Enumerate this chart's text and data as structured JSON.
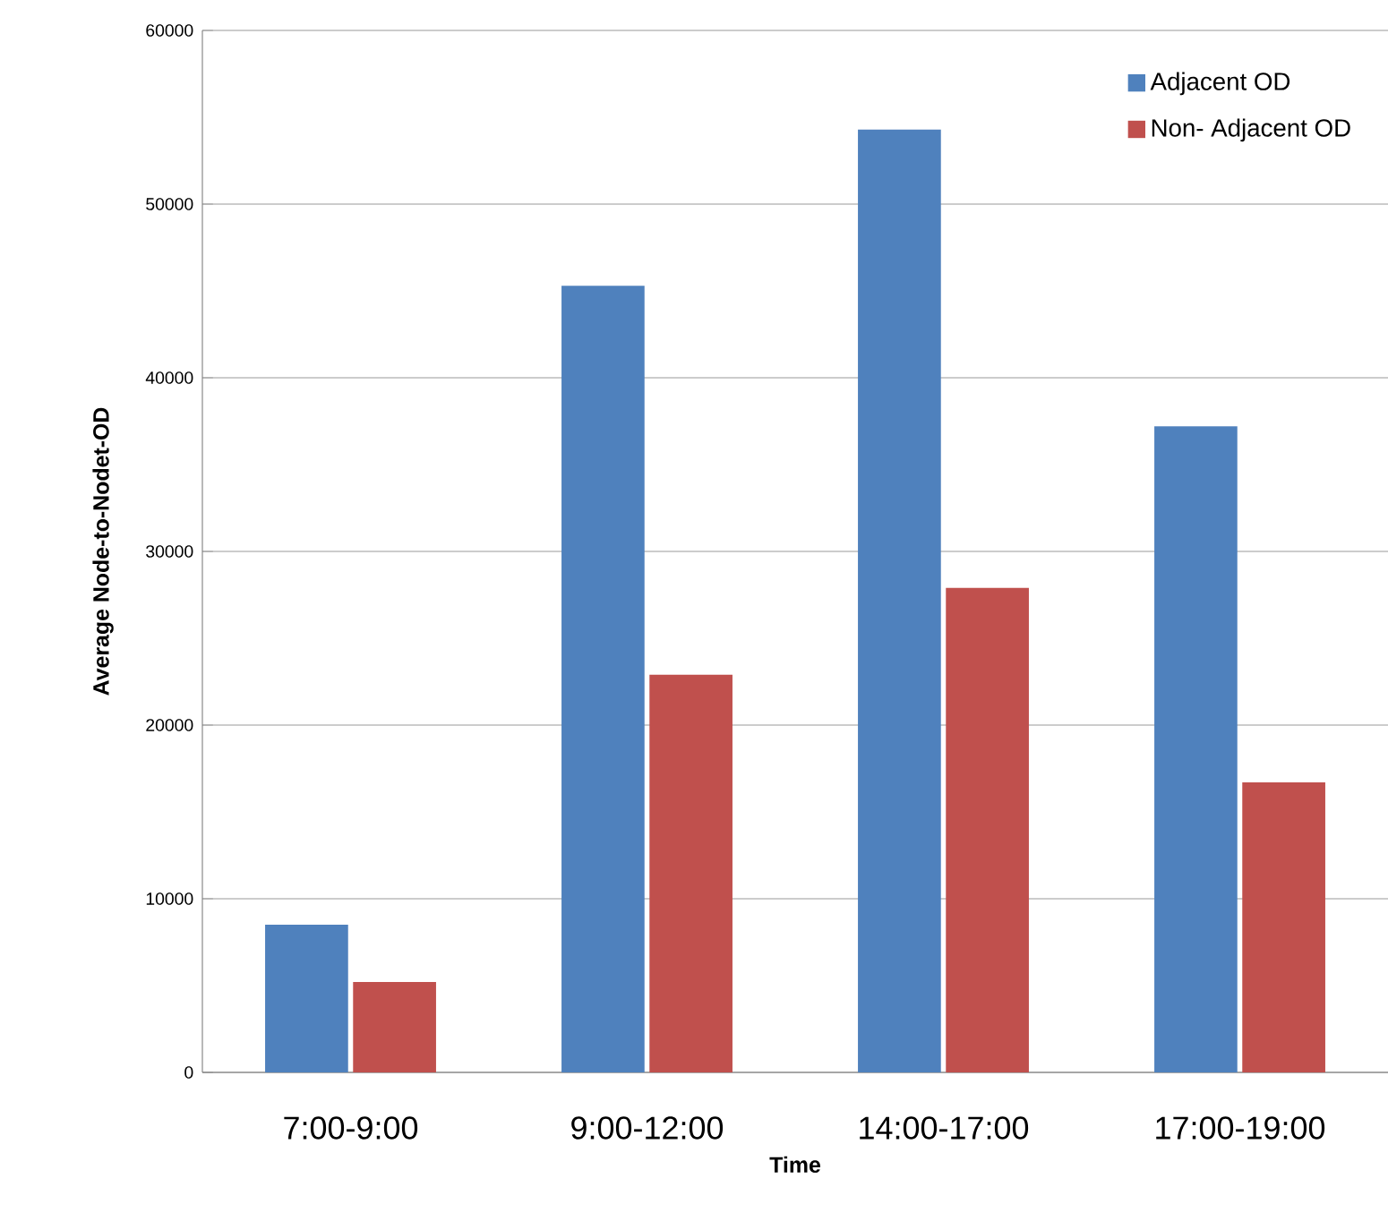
{
  "chart_data": {
    "type": "bar",
    "xlabel": "Time",
    "ylabel": "Average Node-to-Nodet-OD",
    "categories": [
      "7:00-9:00",
      "9:00-12:00",
      "14:00-17:00",
      "17:00-19:00"
    ],
    "series": [
      {
        "name": "Adjacent OD",
        "color": "#4f81bd",
        "values": [
          8500,
          45300,
          54300,
          37200
        ]
      },
      {
        "name": "Non- Adjacent OD",
        "color": "#c0504d",
        "values": [
          5200,
          22900,
          27900,
          16700
        ]
      }
    ],
    "ylim": [
      0,
      60000
    ],
    "yticks": [
      0,
      10000,
      20000,
      30000,
      40000,
      50000,
      60000
    ],
    "grid": "y",
    "legend": "top right"
  }
}
